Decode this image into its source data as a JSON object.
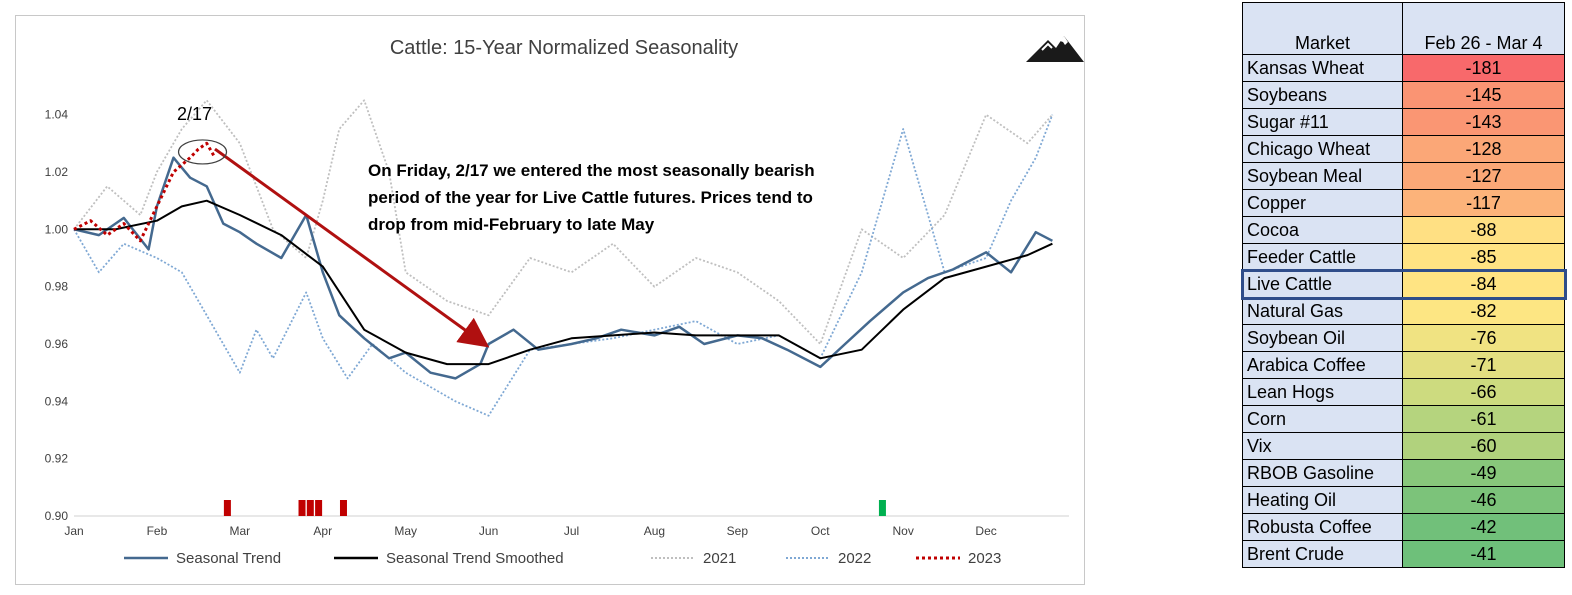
{
  "chart_data": {
    "type": "line",
    "title": "Cattle: 15-Year Normalized Seasonality",
    "x_tick_labels": [
      "Jan",
      "Feb",
      "Mar",
      "Apr",
      "May",
      "Jun",
      "Jul",
      "Aug",
      "Sep",
      "Oct",
      "Nov",
      "Dec"
    ],
    "y_tick_labels": [
      "0.90",
      "0.92",
      "0.94",
      "0.96",
      "0.98",
      "1.00",
      "1.02",
      "1.04"
    ],
    "ylim": [
      0.9,
      1.05
    ],
    "xlim_months": [
      0,
      12
    ],
    "grid": false,
    "legend_position": "bottom",
    "series": [
      {
        "name": "Seasonal Trend",
        "color": "#44698f",
        "style": "solid",
        "x": [
          0.0,
          0.3,
          0.6,
          0.9,
          1.0,
          1.2,
          1.4,
          1.6,
          1.8,
          2.0,
          2.2,
          2.5,
          2.8,
          3.0,
          3.2,
          3.5,
          3.8,
          4.0,
          4.3,
          4.6,
          4.9,
          5.0,
          5.3,
          5.6,
          6.0,
          6.3,
          6.6,
          7.0,
          7.3,
          7.6,
          8.0,
          8.3,
          8.6,
          9.0,
          9.3,
          9.6,
          10.0,
          10.3,
          10.6,
          11.0,
          11.3,
          11.6,
          11.8
        ],
        "y": [
          1.0,
          0.998,
          1.004,
          0.993,
          1.008,
          1.025,
          1.018,
          1.015,
          1.002,
          0.999,
          0.995,
          0.99,
          1.005,
          0.985,
          0.97,
          0.962,
          0.955,
          0.957,
          0.95,
          0.948,
          0.953,
          0.96,
          0.965,
          0.958,
          0.96,
          0.962,
          0.965,
          0.963,
          0.966,
          0.96,
          0.963,
          0.962,
          0.958,
          0.952,
          0.96,
          0.968,
          0.978,
          0.983,
          0.986,
          0.992,
          0.985,
          0.999,
          0.996
        ]
      },
      {
        "name": "Seasonal Trend Smoothed",
        "color": "#000000",
        "style": "solid",
        "x": [
          0.0,
          0.5,
          1.0,
          1.3,
          1.6,
          2.0,
          2.5,
          3.0,
          3.5,
          4.0,
          4.5,
          5.0,
          5.5,
          6.0,
          6.5,
          7.0,
          7.5,
          8.0,
          8.5,
          9.0,
          9.5,
          10.0,
          10.5,
          11.0,
          11.5,
          11.8
        ],
        "y": [
          1.0,
          1.0,
          1.003,
          1.008,
          1.01,
          1.005,
          0.998,
          0.987,
          0.965,
          0.957,
          0.953,
          0.953,
          0.958,
          0.962,
          0.963,
          0.964,
          0.963,
          0.963,
          0.963,
          0.955,
          0.958,
          0.972,
          0.983,
          0.987,
          0.991,
          0.995
        ]
      },
      {
        "name": "2021",
        "color": "#bfbfbf",
        "style": "dotted",
        "x": [
          0.0,
          0.4,
          0.8,
          1.0,
          1.3,
          1.6,
          2.0,
          2.4,
          2.8,
          3.0,
          3.2,
          3.5,
          3.8,
          4.0,
          4.5,
          5.0,
          5.5,
          6.0,
          6.5,
          7.0,
          7.5,
          8.0,
          8.5,
          9.0,
          9.5,
          10.0,
          10.5,
          11.0,
          11.5,
          11.8
        ],
        "y": [
          1.0,
          1.015,
          1.005,
          1.02,
          1.035,
          1.045,
          1.03,
          1.0,
          0.99,
          1.01,
          1.035,
          1.045,
          1.02,
          0.985,
          0.975,
          0.97,
          0.99,
          0.985,
          0.995,
          0.98,
          0.99,
          0.985,
          0.975,
          0.96,
          1.0,
          0.99,
          1.005,
          1.04,
          1.03,
          1.04
        ]
      },
      {
        "name": "2022",
        "color": "#7fa8d4",
        "style": "dotted",
        "x": [
          0.0,
          0.3,
          0.6,
          1.0,
          1.3,
          1.6,
          2.0,
          2.2,
          2.4,
          2.8,
          3.0,
          3.3,
          3.6,
          4.0,
          4.3,
          4.6,
          5.0,
          5.5,
          6.0,
          6.5,
          7.0,
          7.5,
          8.0,
          8.5,
          9.0,
          9.5,
          10.0,
          10.5,
          11.0,
          11.3,
          11.6,
          11.8
        ],
        "y": [
          1.0,
          0.985,
          0.995,
          0.99,
          0.985,
          0.97,
          0.95,
          0.965,
          0.955,
          0.978,
          0.962,
          0.948,
          0.96,
          0.95,
          0.945,
          0.94,
          0.935,
          0.958,
          0.96,
          0.962,
          0.965,
          0.968,
          0.96,
          0.963,
          0.955,
          0.985,
          1.035,
          0.985,
          0.99,
          1.01,
          1.025,
          1.04
        ]
      },
      {
        "name": "2023",
        "color": "#c00000",
        "style": "dotted",
        "x": [
          0.0,
          0.2,
          0.4,
          0.6,
          0.8,
          1.0,
          1.2,
          1.4,
          1.5,
          1.6,
          1.7
        ],
        "y": [
          1.0,
          1.003,
          0.998,
          1.002,
          0.996,
          1.008,
          1.02,
          1.025,
          1.028,
          1.03,
          1.025
        ]
      }
    ],
    "signal_bars": [
      {
        "month": 1.85,
        "color": "#c00000"
      },
      {
        "month": 2.75,
        "color": "#c00000"
      },
      {
        "month": 2.85,
        "color": "#c00000"
      },
      {
        "month": 2.95,
        "color": "#c00000"
      },
      {
        "month": 3.25,
        "color": "#c00000"
      },
      {
        "month": 9.75,
        "color": "#00b050"
      }
    ],
    "annotations": [
      {
        "text": "2/17"
      },
      {
        "lines": [
          "On Friday, 2/17 we entered the most seasonally bearish",
          "period of the year for Live Cattle futures.  Prices tend to",
          "drop from mid-February to late May"
        ]
      }
    ],
    "arrow": {
      "from": [
        1.7,
        1.028
      ],
      "to": [
        4.95,
        0.96
      ],
      "color": "#b01010"
    }
  },
  "logo": {
    "name": "mountain-logo-icon"
  },
  "table": {
    "header_market": "Market",
    "header_period": "Feb 26 - Mar 4",
    "highlight_color": "#2f4d8a",
    "rows": [
      {
        "market": "Kansas Wheat",
        "value": "-181",
        "color": "#f8696b"
      },
      {
        "market": "Soybeans",
        "value": "-145",
        "color": "#fa9473"
      },
      {
        "market": "Sugar #11",
        "value": "-143",
        "color": "#fa9673"
      },
      {
        "market": "Chicago Wheat",
        "value": "-128",
        "color": "#fba777"
      },
      {
        "market": "Soybean Meal",
        "value": "-127",
        "color": "#fba877"
      },
      {
        "market": "Copper",
        "value": "-117",
        "color": "#fcb37a"
      },
      {
        "market": "Cocoa",
        "value": "-88",
        "color": "#ffe083"
      },
      {
        "market": "Feeder Cattle",
        "value": "-85",
        "color": "#ffe383"
      },
      {
        "market": "Live Cattle",
        "value": "-84",
        "color": "#ffe483",
        "highlight": true
      },
      {
        "market": "Natural Gas",
        "value": "-82",
        "color": "#fde683"
      },
      {
        "market": "Soybean Oil",
        "value": "-76",
        "color": "#f0e382"
      },
      {
        "market": "Arabica Coffee",
        "value": "-71",
        "color": "#e3df81"
      },
      {
        "market": "Lean Hogs",
        "value": "-66",
        "color": "#cddb7f"
      },
      {
        "market": "Corn",
        "value": "-61",
        "color": "#b5d47e"
      },
      {
        "market": "Vix",
        "value": "-60",
        "color": "#b1d27d"
      },
      {
        "market": "RBOB Gasoline",
        "value": "-49",
        "color": "#88c77b"
      },
      {
        "market": "Heating Oil",
        "value": "-46",
        "color": "#7cc37a"
      },
      {
        "market": "Robusta Coffee",
        "value": "-42",
        "color": "#71c07a"
      },
      {
        "market": "Brent Crude",
        "value": "-41",
        "color": "#6ec07a"
      }
    ]
  }
}
